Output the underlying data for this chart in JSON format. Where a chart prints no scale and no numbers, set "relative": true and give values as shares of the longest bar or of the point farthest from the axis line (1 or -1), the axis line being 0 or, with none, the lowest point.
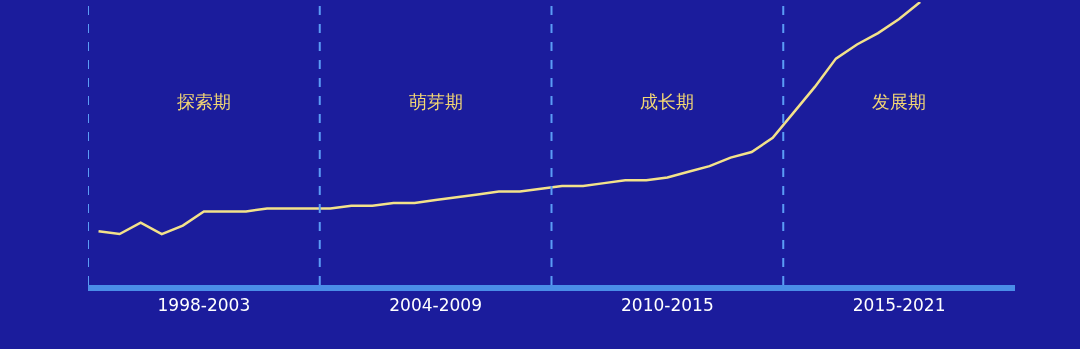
{
  "chart_data": {
    "type": "line",
    "relative": true,
    "categories": [
      null,
      null,
      null,
      null,
      null,
      "1998-2003",
      null,
      null,
      null,
      null,
      null,
      null,
      null,
      null,
      null,
      null,
      "2004-2009",
      null,
      null,
      null,
      null,
      null,
      null,
      null,
      null,
      null,
      null,
      "2010-2015",
      null,
      null,
      null,
      null,
      null,
      null,
      null,
      null,
      null,
      null,
      "2015-2021",
      null,
      null,
      null,
      null,
      null
    ],
    "series": [
      {
        "color": "#f3e28a",
        "values": [
          0.19,
          0.18,
          0.22,
          0.18,
          0.21,
          0.26,
          0.26,
          0.26,
          0.27,
          0.27,
          0.27,
          0.27,
          0.28,
          0.28,
          0.29,
          0.29,
          0.3,
          0.31,
          0.32,
          0.33,
          0.33,
          0.34,
          0.35,
          0.35,
          0.36,
          0.37,
          0.37,
          0.38,
          0.4,
          0.42,
          0.45,
          0.47,
          0.52,
          0.61,
          0.7,
          0.8,
          0.85,
          0.89,
          0.94,
          1,
          null,
          null,
          null,
          null
        ]
      }
    ],
    "annotations": [
      "探索期",
      "萌芽期",
      "成长期",
      "发展期"
    ],
    "grid": false,
    "legend": false,
    "marker": "none",
    "line_style": "solid"
  }
}
